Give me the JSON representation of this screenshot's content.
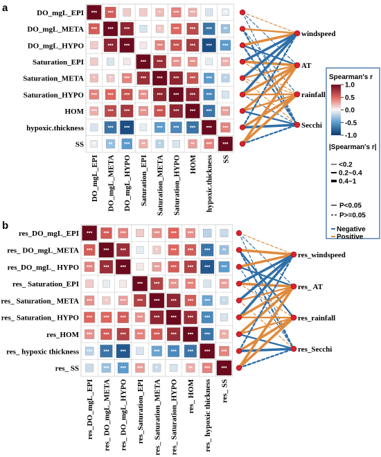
{
  "figure": {
    "panel_labels": [
      "a",
      "b"
    ],
    "colors": {
      "positive": "#e08a3c",
      "negative": "#2f6fa8",
      "node": "#e0202a",
      "legend_border": "#2f5f9a"
    }
  },
  "chart_data": [
    {
      "type": "heatmap",
      "panel": "a",
      "variables": [
        "DO_mgL_EPI",
        "DO_mgL_META",
        "DO_mgL_HYPO",
        "Saturation_EPI",
        "Saturation_META",
        "Saturation_HYPO",
        "HOM",
        "hypoxic.thickness",
        "SS"
      ],
      "matrix": [
        [
          1.0,
          0.55,
          0.15,
          0.15,
          0.2,
          0.4,
          0.25,
          -0.1,
          -0.05
        ],
        [
          0.55,
          1.0,
          0.85,
          -0.1,
          0.15,
          0.5,
          0.65,
          -0.7,
          -0.3
        ],
        [
          0.15,
          0.85,
          1.0,
          0.05,
          0.4,
          0.6,
          0.75,
          -0.9,
          -0.5
        ],
        [
          0.15,
          -0.1,
          0.05,
          1.0,
          0.8,
          0.35,
          0.35,
          -0.05,
          0.25
        ],
        [
          0.2,
          0.15,
          0.4,
          0.8,
          1.0,
          0.85,
          0.6,
          -0.5,
          -0.2
        ],
        [
          0.4,
          0.5,
          0.6,
          0.35,
          0.85,
          1.0,
          0.85,
          -0.6,
          -0.1
        ],
        [
          0.25,
          0.65,
          0.75,
          0.35,
          0.6,
          0.85,
          1.0,
          -0.7,
          0.3
        ],
        [
          -0.1,
          -0.7,
          -0.9,
          -0.05,
          -0.5,
          -0.6,
          -0.7,
          1.0,
          0.4
        ],
        [
          -0.05,
          -0.3,
          -0.5,
          0.25,
          -0.2,
          -0.1,
          0.3,
          0.4,
          1.0
        ]
      ],
      "significance": [
        [
          "***",
          "***",
          "",
          "",
          "*",
          "***",
          "***",
          "",
          "**"
        ],
        [
          "***",
          "***",
          "***",
          "",
          "*",
          "***",
          "***",
          "***",
          "**"
        ],
        [
          "",
          "***",
          "***",
          "",
          "***",
          "***",
          "***",
          "***",
          "***"
        ],
        [
          "",
          "",
          "",
          "***",
          "***",
          "***",
          "***",
          "",
          "***"
        ],
        [
          "*",
          "*",
          "***",
          "***",
          "***",
          "***",
          "***",
          "***",
          "*"
        ],
        [
          "***",
          "***",
          "***",
          "***",
          "***",
          "***",
          "***",
          "***",
          ""
        ],
        [
          "***",
          "***",
          "***",
          "***",
          "***",
          "***",
          "***",
          "***",
          "***"
        ],
        [
          "",
          "***",
          "***",
          "",
          "***",
          "***",
          "***",
          "***",
          "***"
        ],
        [
          "**",
          "**",
          "***",
          "**",
          "*",
          "",
          "**",
          "***",
          "***"
        ]
      ],
      "env_vars": [
        "windspeed",
        "AT",
        "rainfall",
        "Secchi"
      ],
      "links": [
        {
          "from": 0,
          "to": 0,
          "sign": "positive",
          "strength": 1,
          "sig": false
        },
        {
          "from": 0,
          "to": 1,
          "sign": "negative",
          "strength": 1,
          "sig": false
        },
        {
          "from": 0,
          "to": 3,
          "sign": "negative",
          "strength": 1,
          "sig": false
        },
        {
          "from": 1,
          "to": 0,
          "sign": "positive",
          "strength": 2,
          "sig": true
        },
        {
          "from": 1,
          "to": 2,
          "sign": "negative",
          "strength": 1,
          "sig": false
        },
        {
          "from": 1,
          "to": 3,
          "sign": "negative",
          "strength": 2,
          "sig": false
        },
        {
          "from": 2,
          "to": 0,
          "sign": "positive",
          "strength": 3,
          "sig": true
        },
        {
          "from": 2,
          "to": 1,
          "sign": "negative",
          "strength": 2,
          "sig": true
        },
        {
          "from": 2,
          "to": 3,
          "sign": "negative",
          "strength": 2,
          "sig": false
        },
        {
          "from": 3,
          "to": 0,
          "sign": "negative",
          "strength": 3,
          "sig": true
        },
        {
          "from": 3,
          "to": 1,
          "sign": "positive",
          "strength": 3,
          "sig": true
        },
        {
          "from": 3,
          "to": 2,
          "sign": "positive",
          "strength": 1,
          "sig": false
        },
        {
          "from": 4,
          "to": 0,
          "sign": "negative",
          "strength": 3,
          "sig": true
        },
        {
          "from": 4,
          "to": 1,
          "sign": "positive",
          "strength": 2,
          "sig": true
        },
        {
          "from": 4,
          "to": 2,
          "sign": "positive",
          "strength": 1,
          "sig": false
        },
        {
          "from": 4,
          "to": 3,
          "sign": "positive",
          "strength": 1,
          "sig": false
        },
        {
          "from": 5,
          "to": 0,
          "sign": "negative",
          "strength": 3,
          "sig": true
        },
        {
          "from": 5,
          "to": 1,
          "sign": "positive",
          "strength": 3,
          "sig": true
        },
        {
          "from": 5,
          "to": 2,
          "sign": "positive",
          "strength": 2,
          "sig": true
        },
        {
          "from": 5,
          "to": 3,
          "sign": "negative",
          "strength": 1,
          "sig": false
        },
        {
          "from": 6,
          "to": 1,
          "sign": "positive",
          "strength": 3,
          "sig": true
        },
        {
          "from": 6,
          "to": 2,
          "sign": "positive",
          "strength": 2,
          "sig": true
        },
        {
          "from": 6,
          "to": 3,
          "sign": "negative",
          "strength": 2,
          "sig": true
        },
        {
          "from": 7,
          "to": 0,
          "sign": "negative",
          "strength": 2,
          "sig": false
        },
        {
          "from": 7,
          "to": 2,
          "sign": "positive",
          "strength": 3,
          "sig": true
        },
        {
          "from": 7,
          "to": 3,
          "sign": "negative",
          "strength": 3,
          "sig": true
        },
        {
          "from": 8,
          "to": 1,
          "sign": "positive",
          "strength": 3,
          "sig": true
        },
        {
          "from": 8,
          "to": 2,
          "sign": "positive",
          "strength": 3,
          "sig": true
        },
        {
          "from": 8,
          "to": 3,
          "sign": "negative",
          "strength": 2,
          "sig": false
        }
      ]
    },
    {
      "type": "heatmap",
      "panel": "b",
      "variables": [
        "res_DO_mgL_EPI",
        "res_ DO_mgL_META",
        "res_DO_mgL_ HYPO",
        "res_ Saturation_EPI",
        "res_ Saturation_ META",
        "res_ Saturation_ HYPO",
        "res_HOM",
        "res_ hypoxic thickness",
        "res_ SS"
      ],
      "col_labels": [
        "res_DO_mgL_EPI",
        "res_ DO_mgL_META",
        "res_ DO_mgL_HYPO",
        "res_Saturation_EPI",
        "res_ Saturation_META",
        "res_ Saturation_HYPO",
        "res_ HOM",
        "res_ hypoxic thickness",
        "res_ SS"
      ],
      "matrix": [
        [
          1.0,
          0.55,
          0.4,
          0.15,
          0.35,
          0.5,
          0.35,
          -0.2,
          -0.15
        ],
        [
          0.55,
          1.0,
          0.8,
          -0.05,
          0.15,
          0.5,
          0.55,
          -0.7,
          -0.3
        ],
        [
          0.4,
          0.8,
          1.0,
          0.05,
          0.3,
          0.55,
          0.7,
          -0.85,
          -0.5
        ],
        [
          0.15,
          -0.05,
          0.05,
          1.0,
          0.7,
          0.35,
          0.4,
          -0.1,
          0.3
        ],
        [
          0.35,
          0.15,
          0.3,
          0.7,
          1.0,
          0.85,
          0.55,
          -0.45,
          -0.15
        ],
        [
          0.5,
          0.5,
          0.55,
          0.35,
          0.85,
          1.0,
          0.8,
          -0.6,
          -0.1
        ],
        [
          0.35,
          0.55,
          0.7,
          0.4,
          0.55,
          0.8,
          1.0,
          -0.7,
          0.25
        ],
        [
          -0.2,
          -0.7,
          -0.85,
          -0.1,
          -0.45,
          -0.6,
          -0.7,
          1.0,
          0.4
        ],
        [
          -0.15,
          -0.3,
          -0.5,
          0.3,
          -0.15,
          -0.1,
          0.25,
          0.4,
          1.0
        ]
      ],
      "significance": [
        [
          "***",
          "***",
          "***",
          "",
          "***",
          "***",
          "***",
          "",
          ""
        ],
        [
          "***",
          "***",
          "***",
          "",
          "*",
          "***",
          "***",
          "***",
          "**"
        ],
        [
          "***",
          "***",
          "***",
          "",
          "***",
          "***",
          "***",
          "***",
          "***"
        ],
        [
          "",
          "",
          "",
          "***",
          "***",
          "***",
          "***",
          "",
          "***"
        ],
        [
          "***",
          "*",
          "***",
          "***",
          "***",
          "***",
          "***",
          "***",
          "*"
        ],
        [
          "***",
          "***",
          "***",
          "***",
          "***",
          "***",
          "***",
          "***",
          ""
        ],
        [
          "***",
          "***",
          "***",
          "***",
          "***",
          "***",
          "***",
          "***",
          "**"
        ],
        [
          "***",
          "***",
          "***",
          "",
          "***",
          "***",
          "***",
          "***",
          "***"
        ],
        [
          "",
          "***",
          "***",
          "***",
          "*",
          "",
          "**",
          "***",
          "***"
        ]
      ],
      "env_vars": [
        "res_windspeed",
        "res_ AT",
        "res_rainfall",
        "res_Secchi"
      ],
      "links": [
        {
          "from": 0,
          "to": 0,
          "sign": "positive",
          "strength": 1,
          "sig": false
        },
        {
          "from": 0,
          "to": 1,
          "sign": "negative",
          "strength": 1,
          "sig": false
        },
        {
          "from": 0,
          "to": 3,
          "sign": "negative",
          "strength": 1,
          "sig": false
        },
        {
          "from": 1,
          "to": 0,
          "sign": "positive",
          "strength": 3,
          "sig": true
        },
        {
          "from": 1,
          "to": 2,
          "sign": "negative",
          "strength": 2,
          "sig": true
        },
        {
          "from": 1,
          "to": 3,
          "sign": "negative",
          "strength": 2,
          "sig": false
        },
        {
          "from": 2,
          "to": 0,
          "sign": "positive",
          "strength": 3,
          "sig": true
        },
        {
          "from": 2,
          "to": 1,
          "sign": "negative",
          "strength": 2,
          "sig": true
        },
        {
          "from": 2,
          "to": 3,
          "sign": "negative",
          "strength": 1,
          "sig": false
        },
        {
          "from": 3,
          "to": 0,
          "sign": "negative",
          "strength": 3,
          "sig": true
        },
        {
          "from": 3,
          "to": 1,
          "sign": "positive",
          "strength": 3,
          "sig": true
        },
        {
          "from": 3,
          "to": 2,
          "sign": "positive",
          "strength": 1,
          "sig": false
        },
        {
          "from": 4,
          "to": 0,
          "sign": "negative",
          "strength": 3,
          "sig": true
        },
        {
          "from": 4,
          "to": 1,
          "sign": "positive",
          "strength": 2,
          "sig": true
        },
        {
          "from": 4,
          "to": 3,
          "sign": "positive",
          "strength": 1,
          "sig": false
        },
        {
          "from": 5,
          "to": 0,
          "sign": "negative",
          "strength": 3,
          "sig": true
        },
        {
          "from": 5,
          "to": 1,
          "sign": "positive",
          "strength": 3,
          "sig": true
        },
        {
          "from": 5,
          "to": 2,
          "sign": "positive",
          "strength": 2,
          "sig": true
        },
        {
          "from": 6,
          "to": 1,
          "sign": "positive",
          "strength": 3,
          "sig": true
        },
        {
          "from": 6,
          "to": 2,
          "sign": "positive",
          "strength": 2,
          "sig": true
        },
        {
          "from": 6,
          "to": 3,
          "sign": "negative",
          "strength": 2,
          "sig": true
        },
        {
          "from": 7,
          "to": 0,
          "sign": "negative",
          "strength": 2,
          "sig": false
        },
        {
          "from": 7,
          "to": 2,
          "sign": "positive",
          "strength": 3,
          "sig": true
        },
        {
          "from": 7,
          "to": 3,
          "sign": "negative",
          "strength": 3,
          "sig": true
        },
        {
          "from": 8,
          "to": 1,
          "sign": "positive",
          "strength": 3,
          "sig": true
        },
        {
          "from": 8,
          "to": 2,
          "sign": "positive",
          "strength": 3,
          "sig": true
        },
        {
          "from": 8,
          "to": 3,
          "sign": "negative",
          "strength": 2,
          "sig": false
        }
      ]
    }
  ],
  "legend": {
    "title": "Spearman's  r",
    "ticks": [
      "1.0",
      "0.5",
      "0.0",
      "-0.5",
      "-1.0"
    ],
    "tick_values": [
      1.0,
      0.5,
      0.0,
      -0.5,
      -1.0
    ],
    "abs_title": "|Spearman's  r|",
    "abs_items": [
      "<0.2",
      "0.2~0.4",
      "0.4~1"
    ],
    "p_items": [
      "P<0.05",
      "P>=0.05"
    ],
    "sign_items": [
      "Negative",
      "Positive"
    ]
  }
}
